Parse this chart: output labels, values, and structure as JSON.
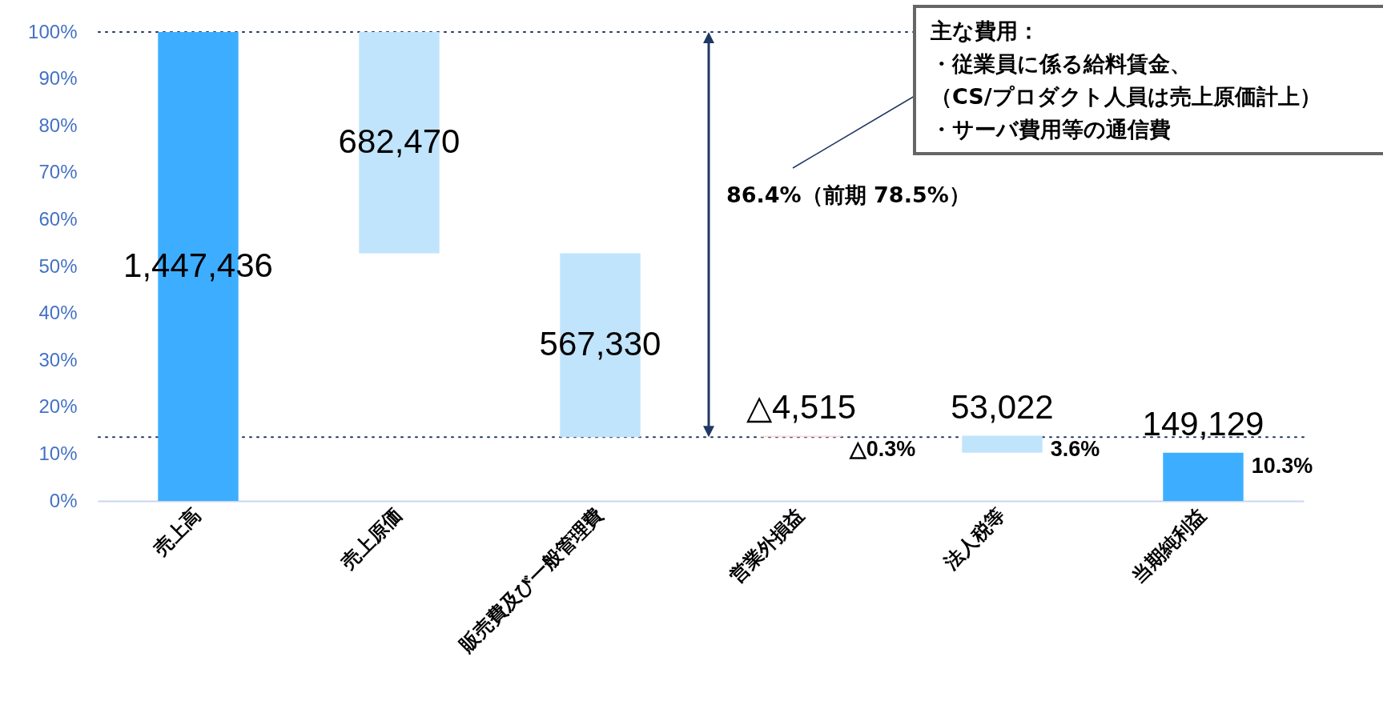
{
  "chart_data": {
    "type": "bar",
    "categories": [
      "売上高",
      "売上原価",
      "販売費及び一般管理費",
      "営業外損益",
      "法人税等",
      "当期純利益"
    ],
    "values": [
      100,
      47.2,
      39.2,
      0.3,
      3.6,
      10.3
    ],
    "base": [
      0,
      52.8,
      13.6,
      13.6,
      10.3,
      0
    ],
    "colors": [
      "#3daeff",
      "#c0e4fc",
      "#c0e4fc",
      "#fcd9d9",
      "#c0e4fc",
      "#3daeff"
    ],
    "ylim": [
      0,
      100
    ],
    "yticks": [
      {
        "value": 0,
        "label": "0%"
      },
      {
        "value": 10,
        "label": "10%"
      },
      {
        "value": 20,
        "label": "20%"
      },
      {
        "value": 30,
        "label": "30%"
      },
      {
        "value": 40,
        "label": "40%"
      },
      {
        "value": 50,
        "label": "50%"
      },
      {
        "value": 60,
        "label": "60%"
      },
      {
        "value": 70,
        "label": "70%"
      },
      {
        "value": 80,
        "label": "80%"
      },
      {
        "value": 90,
        "label": "90%"
      },
      {
        "value": 100,
        "label": "100%"
      }
    ],
    "ref_lines": [
      {
        "axis": "y",
        "value": 100,
        "color": "#203864",
        "line_style": "dotted"
      },
      {
        "axis": "y",
        "value": 13.6,
        "color": "#203864",
        "line_style": "dotted"
      }
    ],
    "annotations": [
      "1,447,436",
      "682,470",
      "567,330",
      "△4,515",
      "53,022",
      "149,129",
      "86.4%（前期 78.5%）",
      "主な費用：",
      "・従業員に係る給料賃金、",
      "（CS/プロダクト人員は売上原価計上）",
      "・サーバ費用等の通信費",
      {
        "text": "△0.3%",
        "x": "営業外損益",
        "y": 13.9
      },
      {
        "text": "3.6%",
        "x": "法人税等",
        "y": 13.9
      },
      {
        "text": "10.3%",
        "x": "当期純利益",
        "y": 10.3
      }
    ],
    "legend": false
  }
}
